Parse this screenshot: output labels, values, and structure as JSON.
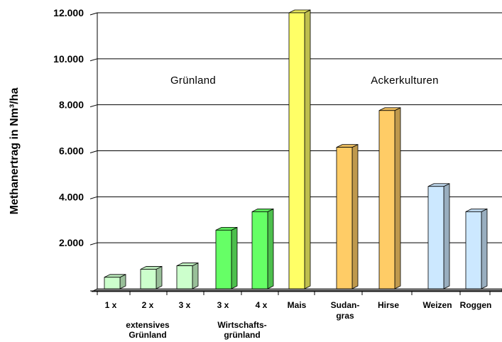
{
  "chart_data": {
    "type": "bar",
    "ylabel": "Methanertrag in Nm³/ha",
    "ylim": [
      0,
      12000
    ],
    "y_ticks": [
      "2.000",
      "4.000",
      "6.000",
      "8.000",
      "10.000",
      "12.000"
    ],
    "y_tick_values": [
      2000,
      4000,
      6000,
      8000,
      10000,
      12000
    ],
    "grid": true,
    "categories": [
      "1 x",
      "2 x",
      "3 x",
      "3 x",
      "4 x",
      "Mais",
      "Sudan-\ngras",
      "Hirse",
      "Weizen",
      "Roggen"
    ],
    "values": [
      500,
      850,
      1000,
      2550,
      3350,
      12000,
      6150,
      7750,
      4450,
      3350
    ],
    "bar_colors": [
      "#ccffcc",
      "#ccffcc",
      "#ccffcc",
      "#66ff66",
      "#66ff66",
      "#ffff66",
      "#ffcc66",
      "#ffcc66",
      "#cce8ff",
      "#cce8ff"
    ],
    "groups": [
      {
        "label": "extensives\nGrünland",
        "categories": [
          0,
          1,
          2
        ]
      },
      {
        "label": "Wirtschafts-\ngrünland",
        "categories": [
          3,
          4
        ]
      }
    ],
    "annotations": [
      "Grünland",
      "Ackerkulturen"
    ]
  }
}
